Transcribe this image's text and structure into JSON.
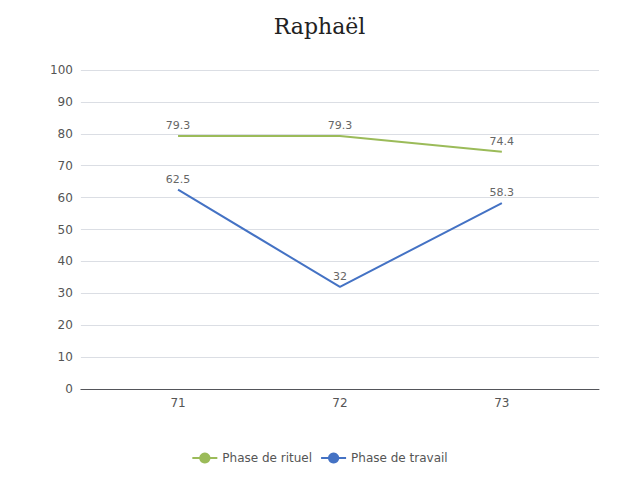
{
  "chart_data": {
    "type": "line",
    "title": "Raphaël",
    "x": [
      71,
      72,
      73
    ],
    "series": [
      {
        "name": "Phase de rituel",
        "color": "#9BBB59",
        "values": [
          79.3,
          79.3,
          74.4
        ]
      },
      {
        "name": "Phase de travail",
        "color": "#4472C4",
        "values": [
          62.5,
          32,
          58.3
        ]
      }
    ],
    "xlim": [
      70.4,
      73.6
    ],
    "xticks": [
      71,
      72,
      73
    ],
    "ylim": [
      0,
      100
    ],
    "yticks": [
      0,
      10,
      20,
      30,
      40,
      50,
      60,
      70,
      80,
      90,
      100
    ],
    "grid": true,
    "legend": "bottom",
    "data_labels": true
  }
}
